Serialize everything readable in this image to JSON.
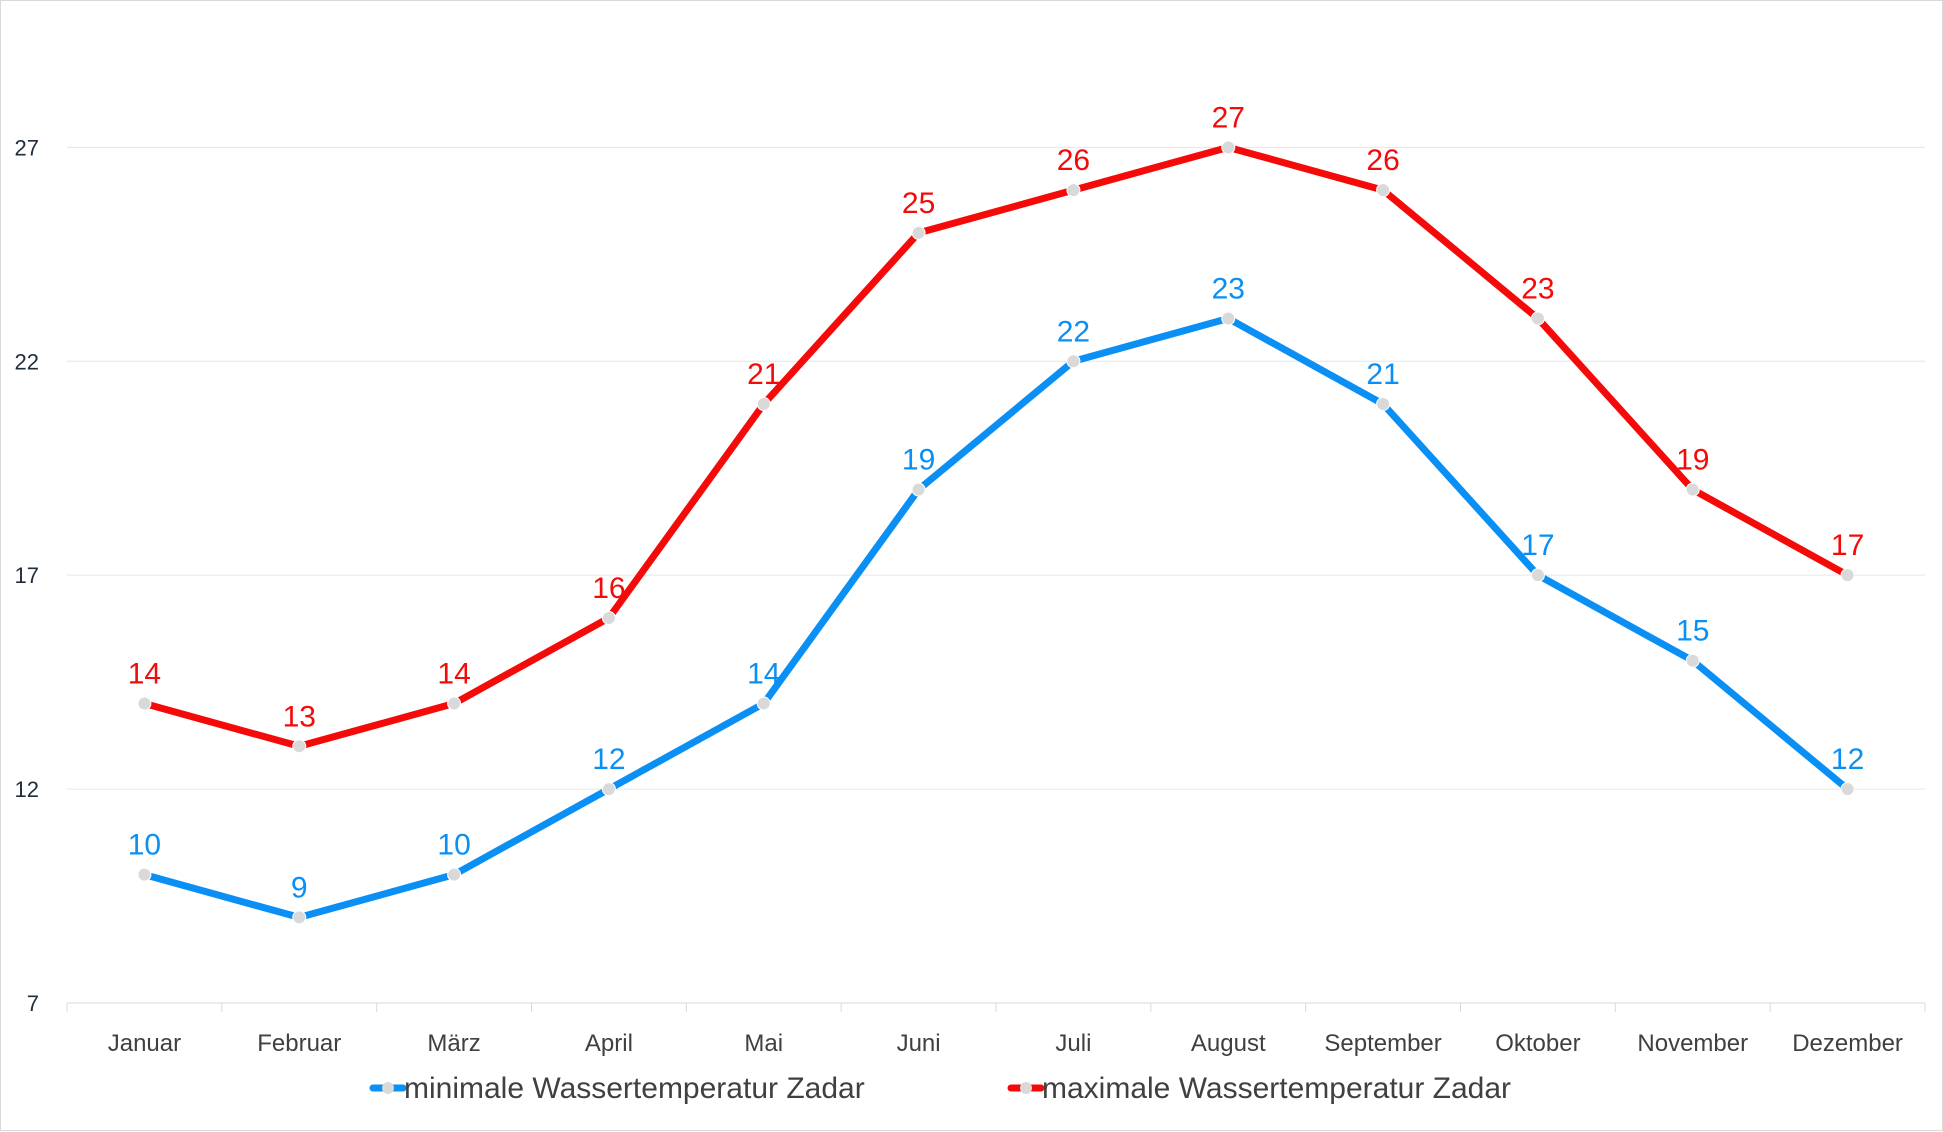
{
  "chart_data": {
    "type": "line",
    "title": "",
    "xlabel": "",
    "ylabel": "",
    "categories": [
      "Januar",
      "Februar",
      "März",
      "April",
      "Mai",
      "Juni",
      "Juli",
      "August",
      "September",
      "Oktober",
      "November",
      "Dezember"
    ],
    "ylim": [
      7,
      30
    ],
    "yticks": [
      7,
      12,
      17,
      22,
      27
    ],
    "grid": "horizontal",
    "legend_position": "bottom",
    "series": [
      {
        "name": "minimale Wassertemperatur Zadar",
        "color": "#0a8ff5",
        "values": [
          10,
          9,
          10,
          12,
          14,
          19,
          22,
          23,
          21,
          17,
          15,
          12
        ]
      },
      {
        "name": "maximale Wassertemperatur Zadar",
        "color": "#f50a0a",
        "values": [
          14,
          13,
          14,
          16,
          21,
          25,
          26,
          27,
          26,
          23,
          19,
          17
        ]
      }
    ],
    "marker_color": "#d9d9d9"
  }
}
